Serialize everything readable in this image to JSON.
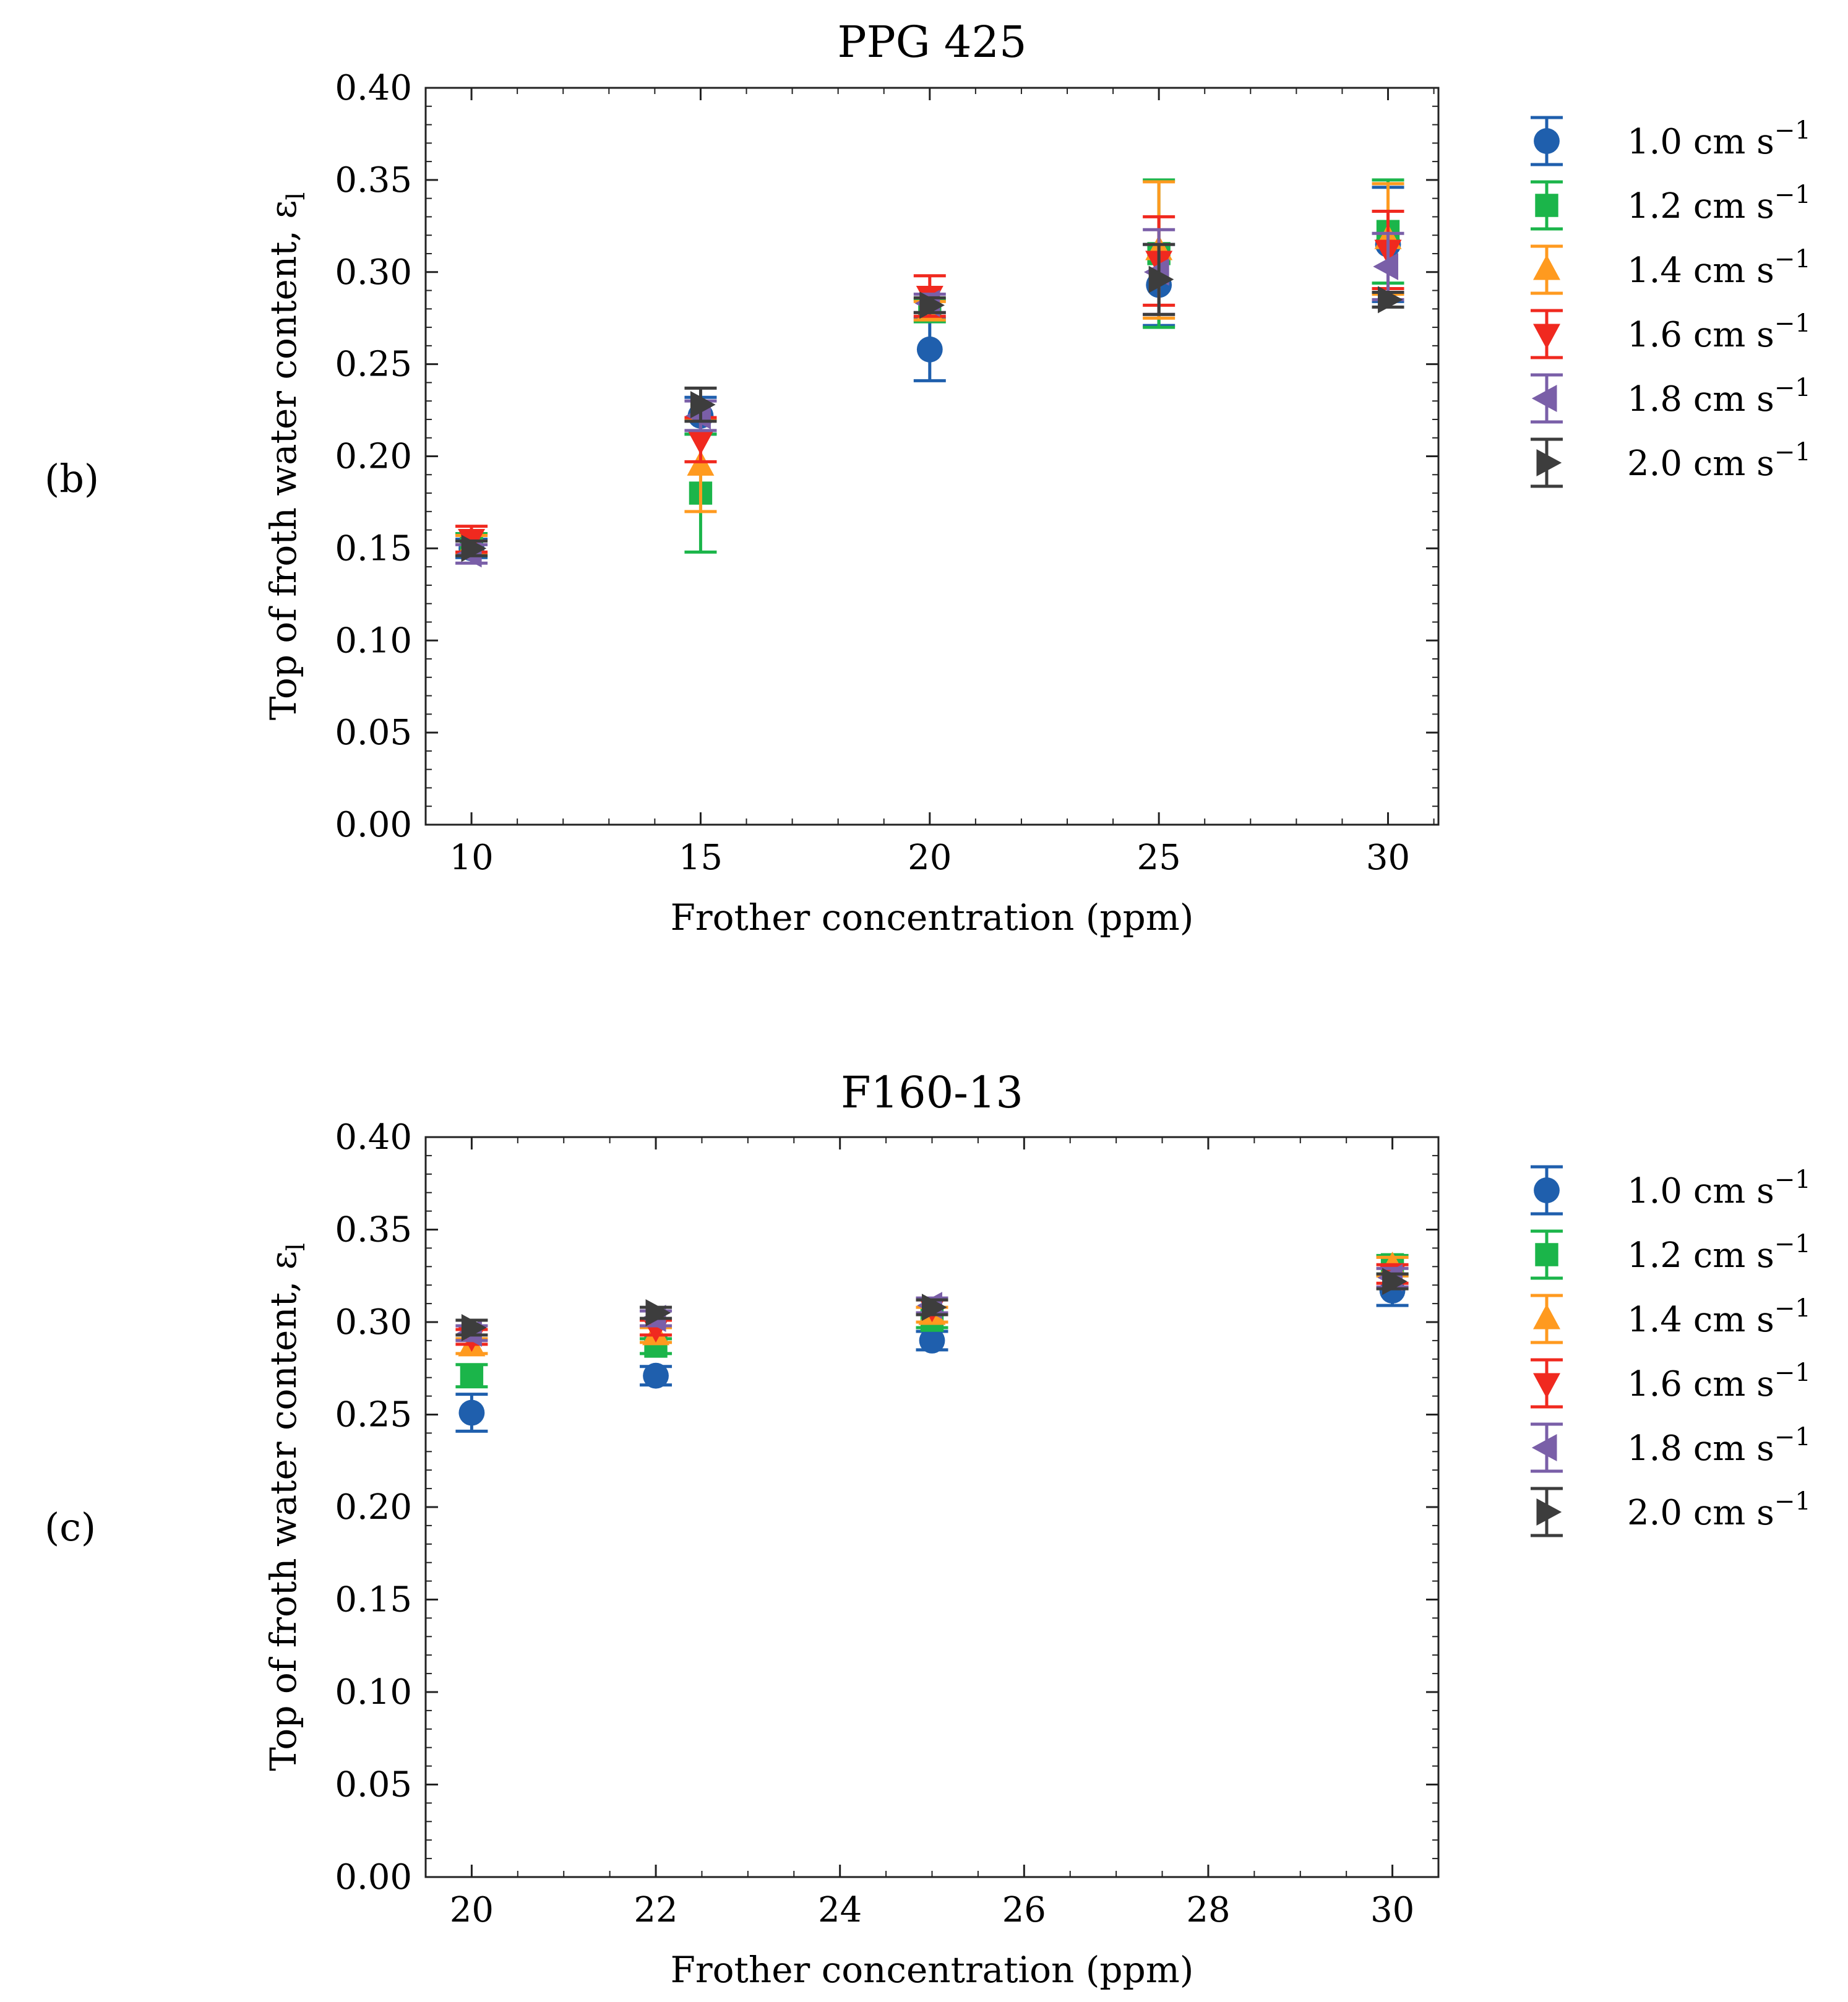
{
  "chart_data": [
    {
      "type": "scatter",
      "panel_label": "(b)",
      "title": "PPG 425",
      "xlabel": "Frother concentration (ppm)",
      "ylabel": "Top of froth water content, ε",
      "ylabel_sub": "l",
      "xlim": [
        9,
        31.1
      ],
      "ylim": [
        0,
        0.4
      ],
      "xticks": [
        10,
        15,
        20,
        25,
        30
      ],
      "xtick_labels": [
        "10",
        "15",
        "20",
        "25",
        "30"
      ],
      "yticks": [
        0,
        0.05,
        0.1,
        0.15,
        0.2,
        0.25,
        0.3,
        0.35,
        0.4
      ],
      "ytick_labels": [
        "0.00",
        "0.05",
        "0.10",
        "0.15",
        "0.20",
        "0.25",
        "0.30",
        "0.35",
        "0.40"
      ],
      "legend_position": "right-outside",
      "series": [
        {
          "name": "1.0 cm s⁻¹",
          "label_base": "1.0 cm s",
          "label_sup": "−1",
          "color": "#1f5fad",
          "marker": "circle",
          "points": [
            {
              "x": 10,
              "y": 0.15,
              "err": 0.005
            },
            {
              "x": 15,
              "y": 0.222,
              "err": 0.01
            },
            {
              "x": 20,
              "y": 0.258,
              "err": 0.017
            },
            {
              "x": 25,
              "y": 0.293,
              "err": 0.022
            },
            {
              "x": 30,
              "y": 0.315,
              "err": 0.031
            }
          ]
        },
        {
          "name": "1.2 cm s⁻¹",
          "label_base": "1.2 cm s",
          "label_sup": "−1",
          "color": "#1bb54a",
          "marker": "square",
          "points": [
            {
              "x": 10,
              "y": 0.152,
              "err": 0.006
            },
            {
              "x": 15,
              "y": 0.18,
              "err": 0.032
            },
            {
              "x": 20,
              "y": 0.279,
              "err": 0.006
            },
            {
              "x": 25,
              "y": 0.31,
              "err": 0.04
            },
            {
              "x": 30,
              "y": 0.322,
              "err": 0.028
            }
          ]
        },
        {
          "name": "1.4 cm s⁻¹",
          "label_base": "1.4 cm s",
          "label_sup": "−1",
          "color": "#ff9a1f",
          "marker": "triangle-up",
          "points": [
            {
              "x": 10,
              "y": 0.152,
              "err": 0.005
            },
            {
              "x": 15,
              "y": 0.195,
              "err": 0.025
            },
            {
              "x": 20,
              "y": 0.279,
              "err": 0.005
            },
            {
              "x": 25,
              "y": 0.312,
              "err": 0.037
            },
            {
              "x": 30,
              "y": 0.318,
              "err": 0.03
            }
          ]
        },
        {
          "name": "1.6 cm s⁻¹",
          "label_base": "1.6 cm s",
          "label_sup": "−1",
          "color": "#f0291f",
          "marker": "triangle-down",
          "points": [
            {
              "x": 10,
              "y": 0.155,
              "err": 0.007
            },
            {
              "x": 15,
              "y": 0.209,
              "err": 0.012
            },
            {
              "x": 20,
              "y": 0.287,
              "err": 0.011
            },
            {
              "x": 25,
              "y": 0.306,
              "err": 0.024
            },
            {
              "x": 30,
              "y": 0.312,
              "err": 0.021
            }
          ]
        },
        {
          "name": "1.8 cm s⁻¹",
          "label_base": "1.8 cm s",
          "label_sup": "−1",
          "color": "#7a5fa8",
          "marker": "triangle-left",
          "points": [
            {
              "x": 10,
              "y": 0.147,
              "err": 0.005
            },
            {
              "x": 15,
              "y": 0.222,
              "err": 0.008
            },
            {
              "x": 20,
              "y": 0.283,
              "err": 0.005
            },
            {
              "x": 25,
              "y": 0.3,
              "err": 0.023
            },
            {
              "x": 30,
              "y": 0.303,
              "err": 0.018
            }
          ]
        },
        {
          "name": "2.0 cm s⁻¹",
          "label_base": "2.0 cm s",
          "label_sup": "−1",
          "color": "#3d3d3d",
          "marker": "triangle-right",
          "points": [
            {
              "x": 10,
              "y": 0.15,
              "err": 0.004
            },
            {
              "x": 15,
              "y": 0.228,
              "err": 0.009
            },
            {
              "x": 20,
              "y": 0.282,
              "err": 0.004
            },
            {
              "x": 25,
              "y": 0.296,
              "err": 0.019
            },
            {
              "x": 30,
              "y": 0.285,
              "err": 0.004
            }
          ]
        }
      ]
    },
    {
      "type": "scatter",
      "panel_label": "(c)",
      "title": "F160-13",
      "xlabel": "Frother concentration (ppm)",
      "ylabel": "Top of froth water content, ε",
      "ylabel_sub": "l",
      "xlim": [
        19.5,
        30.5
      ],
      "ylim": [
        0,
        0.4
      ],
      "xticks": [
        20,
        22,
        24,
        26,
        28,
        30
      ],
      "xtick_labels": [
        "20",
        "22",
        "24",
        "26",
        "28",
        "30"
      ],
      "yticks": [
        0,
        0.05,
        0.1,
        0.15,
        0.2,
        0.25,
        0.3,
        0.35,
        0.4
      ],
      "ytick_labels": [
        "0.00",
        "0.05",
        "0.10",
        "0.15",
        "0.20",
        "0.25",
        "0.30",
        "0.35",
        "0.40"
      ],
      "legend_position": "right-outside",
      "series": [
        {
          "name": "1.0 cm s⁻¹",
          "label_base": "1.0 cm s",
          "label_sup": "−1",
          "color": "#1f5fad",
          "marker": "circle",
          "points": [
            {
              "x": 20,
              "y": 0.251,
              "err": 0.01
            },
            {
              "x": 22,
              "y": 0.271,
              "err": 0.005
            },
            {
              "x": 25,
              "y": 0.29,
              "err": 0.005
            },
            {
              "x": 30,
              "y": 0.317,
              "err": 0.008
            }
          ]
        },
        {
          "name": "1.2 cm s⁻¹",
          "label_base": "1.2 cm s",
          "label_sup": "−1",
          "color": "#1bb54a",
          "marker": "square",
          "points": [
            {
              "x": 20,
              "y": 0.271,
              "err": 0.006
            },
            {
              "x": 22,
              "y": 0.287,
              "err": 0.004
            },
            {
              "x": 25,
              "y": 0.301,
              "err": 0.004
            },
            {
              "x": 30,
              "y": 0.331,
              "err": 0.005
            }
          ]
        },
        {
          "name": "1.4 cm s⁻¹",
          "label_base": "1.4 cm s",
          "label_sup": "−1",
          "color": "#ff9a1f",
          "marker": "triangle-up",
          "points": [
            {
              "x": 20,
              "y": 0.287,
              "err": 0.004
            },
            {
              "x": 22,
              "y": 0.293,
              "err": 0.004
            },
            {
              "x": 25,
              "y": 0.304,
              "err": 0.004
            },
            {
              "x": 30,
              "y": 0.33,
              "err": 0.005
            }
          ]
        },
        {
          "name": "1.6 cm s⁻¹",
          "label_base": "1.6 cm s",
          "label_sup": "−1",
          "color": "#f0291f",
          "marker": "triangle-down",
          "points": [
            {
              "x": 20,
              "y": 0.292,
              "err": 0.004
            },
            {
              "x": 22,
              "y": 0.297,
              "err": 0.004
            },
            {
              "x": 25,
              "y": 0.308,
              "err": 0.004
            },
            {
              "x": 30,
              "y": 0.326,
              "err": 0.005
            }
          ]
        },
        {
          "name": "1.8 cm s⁻¹",
          "label_base": "1.8 cm s",
          "label_sup": "−1",
          "color": "#7a5fa8",
          "marker": "triangle-left",
          "points": [
            {
              "x": 20,
              "y": 0.294,
              "err": 0.004
            },
            {
              "x": 22,
              "y": 0.302,
              "err": 0.004
            },
            {
              "x": 25,
              "y": 0.309,
              "err": 0.004
            },
            {
              "x": 30,
              "y": 0.324,
              "err": 0.005
            }
          ]
        },
        {
          "name": "2.0 cm s⁻¹",
          "label_base": "2.0 cm s",
          "label_sup": "−1",
          "color": "#3d3d3d",
          "marker": "triangle-right",
          "points": [
            {
              "x": 20,
              "y": 0.297,
              "err": 0.004
            },
            {
              "x": 22,
              "y": 0.305,
              "err": 0.003
            },
            {
              "x": 25,
              "y": 0.308,
              "err": 0.004
            },
            {
              "x": 30,
              "y": 0.322,
              "err": 0.004
            }
          ]
        }
      ]
    }
  ]
}
